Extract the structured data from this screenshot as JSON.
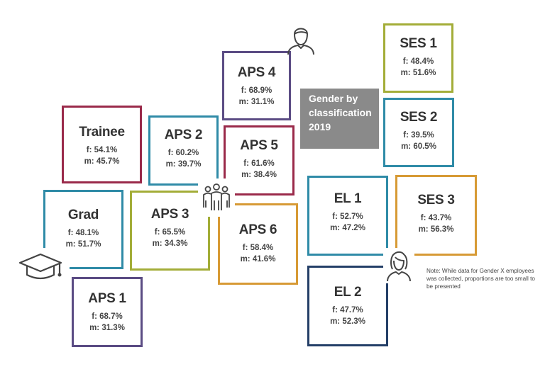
{
  "title_lines": [
    "Gender by",
    "classification",
    "2019"
  ],
  "note": "Note: While data for Gender X employees was collected, proportions are too small to be presented",
  "colors": {
    "red": "#9a2a4a",
    "blue": "#2f8ba7",
    "olive": "#a3ad38",
    "purple": "#5b4c84",
    "orange": "#d79a35",
    "navy": "#243f67",
    "title_bg": "#8a8a8a"
  },
  "cards": {
    "trainee": {
      "name": "Trainee",
      "f": "f: 54.1%",
      "m": "m: 45.7%"
    },
    "grad": {
      "name": "Grad",
      "f": "f: 48.1%",
      "m": "m: 51.7%"
    },
    "aps1": {
      "name": "APS 1",
      "f": "f: 68.7%",
      "m": "m: 31.3%"
    },
    "aps2": {
      "name": "APS 2",
      "f": "f: 60.2%",
      "m": "m: 39.7%"
    },
    "aps3": {
      "name": "APS 3",
      "f": "f: 65.5%",
      "m": "m: 34.3%"
    },
    "aps4": {
      "name": "APS 4",
      "f": "f: 68.9%",
      "m": "m: 31.1%"
    },
    "aps5": {
      "name": "APS 5",
      "f": "f: 61.6%",
      "m": "m: 38.4%"
    },
    "aps6": {
      "name": "APS 6",
      "f": "f: 58.4%",
      "m": "m: 41.6%"
    },
    "el1": {
      "name": "EL 1",
      "f": "f: 52.7%",
      "m": "m: 47.2%"
    },
    "el2": {
      "name": "EL 2",
      "f": "f: 47.7%",
      "m": "m: 52.3%"
    },
    "ses1": {
      "name": "SES 1",
      "f": "f: 48.4%",
      "m": "m: 51.6%"
    },
    "ses2": {
      "name": "SES 2",
      "f": "f: 39.5%",
      "m": "m: 60.5%"
    },
    "ses3": {
      "name": "SES 3",
      "f": "f: 43.7%",
      "m": "m: 56.3%"
    }
  },
  "icons": [
    "person-icon",
    "group-icon",
    "graduation-cap-icon",
    "woman-icon"
  ]
}
